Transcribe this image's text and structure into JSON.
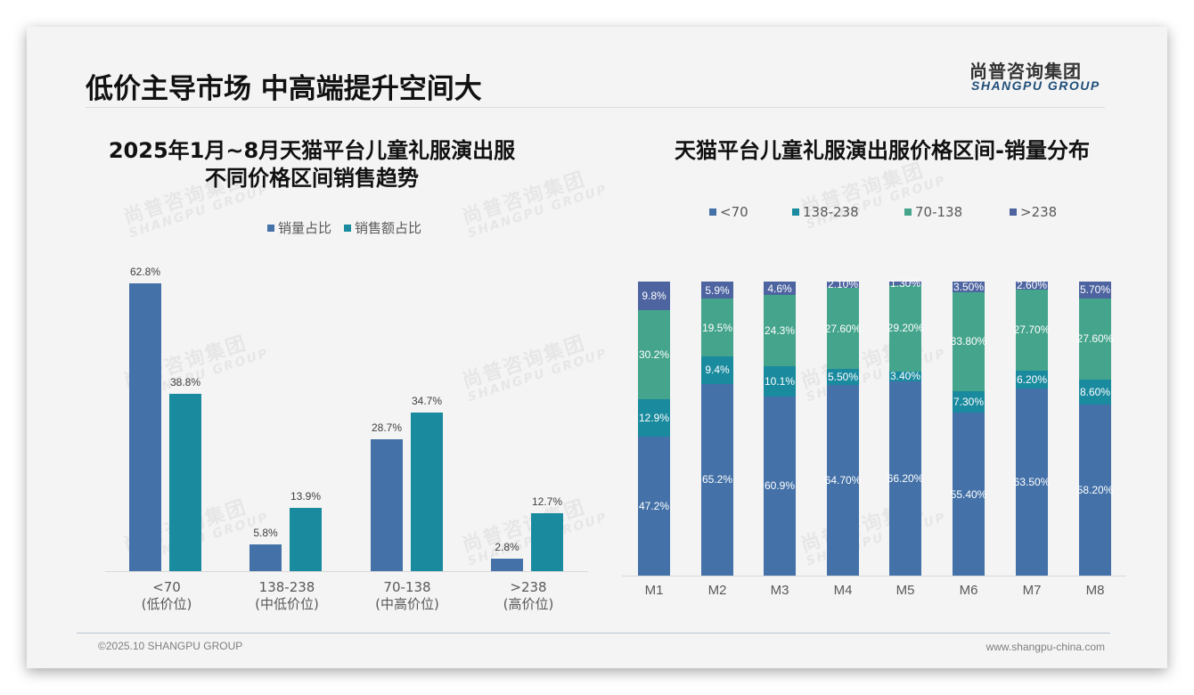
{
  "header": {
    "title": "低价主导市场 中高端提升空间大",
    "logo_cn": "尚普咨询集团",
    "logo_en": "SHANGPU GROUP"
  },
  "watermark": {
    "cn": "尚普咨询集团",
    "en": "SHANGPU GROUP"
  },
  "left_chart": {
    "title_line1": "2025年1月~8月天猫平台儿童礼服演出服",
    "title_line2": "不同价格区间销售趋势",
    "legend": [
      {
        "label": "销量占比",
        "color": "#4472a8"
      },
      {
        "label": "销售额占比",
        "color": "#1a8a9e"
      }
    ],
    "categories": [
      {
        "range": "<70",
        "tier": "(低价位)"
      },
      {
        "range": "138-238",
        "tier": "(中低价位)"
      },
      {
        "range": "70-138",
        "tier": "(中高价位)"
      },
      {
        "range": ">238",
        "tier": "(高价位)"
      }
    ],
    "volume_labels": [
      "62.8%",
      "5.8%",
      "28.7%",
      "2.8%"
    ],
    "sales_labels": [
      "38.8%",
      "13.9%",
      "34.7%",
      "12.7%"
    ]
  },
  "right_chart": {
    "title": "天猫平台儿童礼服演出服价格区间-销量分布",
    "legend": [
      {
        "label": "<70",
        "color": "#4472a8"
      },
      {
        "label": "138-238",
        "color": "#1a8a9e"
      },
      {
        "label": "70-138",
        "color": "#45a48c"
      },
      {
        "label": ">238",
        "color": "#4d64a0"
      }
    ],
    "months": [
      "M1",
      "M2",
      "M3",
      "M4",
      "M5",
      "M6",
      "M7",
      "M8"
    ],
    "labels": {
      "lt70": [
        "47.2%",
        "65.2%",
        "60.9%",
        "64.70%",
        "66.20%",
        "55.40%",
        "63.50%",
        "58.20%"
      ],
      "r138_238": [
        "12.9%",
        "9.4%",
        "10.1%",
        "5.50%",
        "3.40%",
        "7.30%",
        "6.20%",
        "8.60%"
      ],
      "r70_138": [
        "30.2%",
        "19.5%",
        "24.3%",
        "27.60%",
        "29.20%",
        "33.80%",
        "27.70%",
        "27.60%"
      ],
      "gt238": [
        "9.8%",
        "5.9%",
        "4.6%",
        "2.10%",
        "1.30%",
        "3.50%",
        "2.60%",
        "5.70%"
      ]
    }
  },
  "footer": {
    "copyright": "©2025.10 SHANGPU GROUP",
    "website": "www.shangpu-china.com"
  },
  "chart_data": [
    {
      "type": "bar",
      "title": "2025年1月~8月天猫平台儿童礼服演出服不同价格区间销售趋势",
      "categories": [
        "<70 (低价位)",
        "138-238 (中低价位)",
        "70-138 (中高价位)",
        ">238 (高价位)"
      ],
      "series": [
        {
          "name": "销量占比",
          "values": [
            62.8,
            5.8,
            28.7,
            2.8
          ],
          "color": "#4472a8"
        },
        {
          "name": "销售额占比",
          "values": [
            38.8,
            13.9,
            34.7,
            12.7
          ],
          "color": "#1a8a9e"
        }
      ],
      "xlabel": "",
      "ylabel": "",
      "unit": "%",
      "grid": false,
      "legend_position": "top"
    },
    {
      "type": "bar",
      "stacked": true,
      "title": "天猫平台儿童礼服演出服价格区间-销量分布",
      "categories": [
        "M1",
        "M2",
        "M3",
        "M4",
        "M5",
        "M6",
        "M7",
        "M8"
      ],
      "series": [
        {
          "name": "<70",
          "values": [
            47.2,
            65.2,
            60.9,
            64.7,
            66.2,
            55.4,
            63.5,
            58.2
          ],
          "color": "#4472a8"
        },
        {
          "name": "138-238",
          "values": [
            12.9,
            9.4,
            10.1,
            5.5,
            3.4,
            7.3,
            6.2,
            8.6
          ],
          "color": "#1a8a9e"
        },
        {
          "name": "70-138",
          "values": [
            30.2,
            19.5,
            24.3,
            27.6,
            29.2,
            33.8,
            27.7,
            27.6
          ],
          "color": "#45a48c"
        },
        {
          "name": ">238",
          "values": [
            9.8,
            5.9,
            4.6,
            2.1,
            1.3,
            3.5,
            2.6,
            5.7
          ],
          "color": "#4d64a0"
        }
      ],
      "xlabel": "",
      "ylabel": "",
      "unit": "%",
      "ylim": [
        0,
        100
      ],
      "grid": false,
      "legend_position": "top"
    }
  ]
}
